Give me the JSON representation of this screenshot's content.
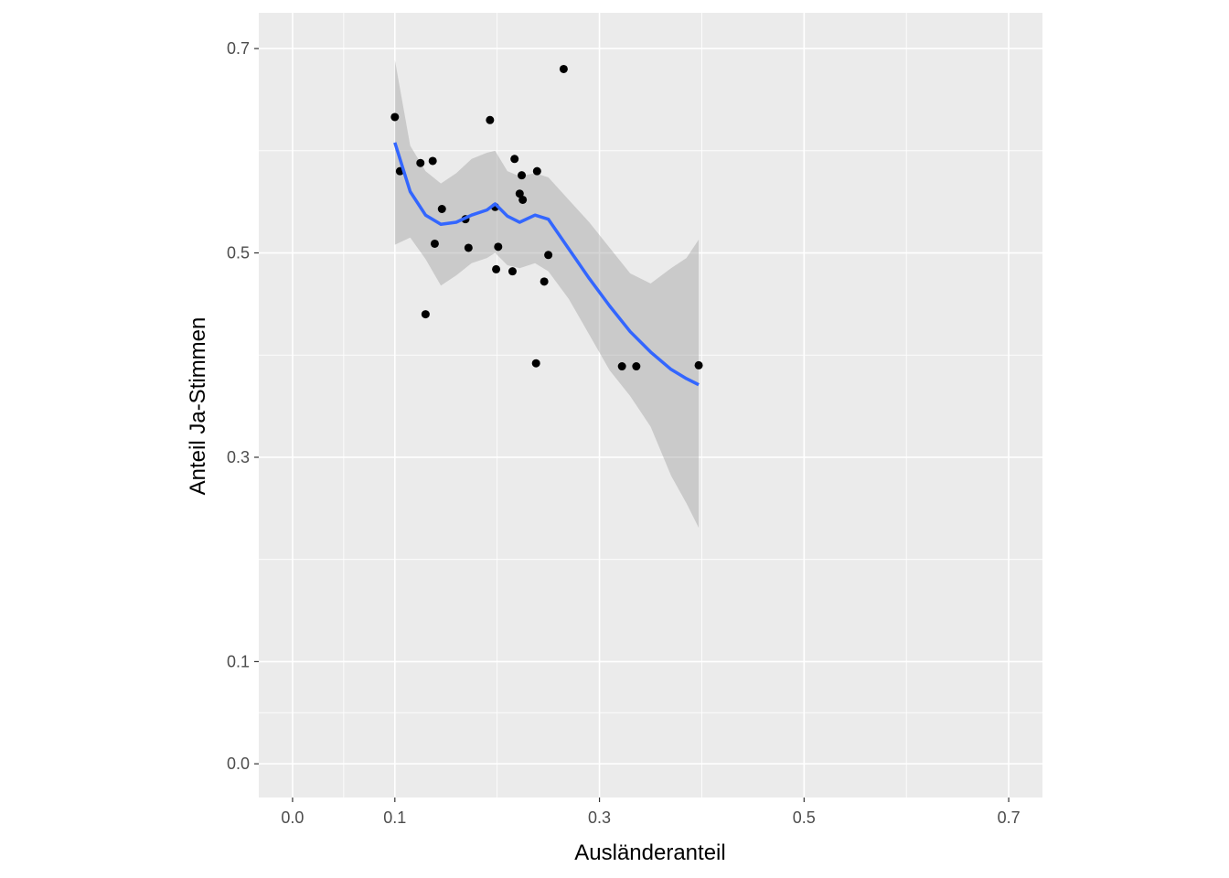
{
  "chart_data": {
    "type": "scatter",
    "xlabel": "Ausländeranteil",
    "ylabel": "Anteil Ja-Stimmen",
    "xlim": [
      -0.033,
      0.733
    ],
    "ylim": [
      -0.033,
      0.735
    ],
    "x_ticks": [
      0.0,
      0.1,
      0.3,
      0.5,
      0.7
    ],
    "x_tick_labels": [
      "0.0",
      "0.1",
      "0.3",
      "0.5",
      "0.7"
    ],
    "x_minor_ticks": [
      0.05,
      0.2,
      0.4,
      0.6
    ],
    "y_ticks": [
      0.0,
      0.1,
      0.3,
      0.5,
      0.7
    ],
    "y_tick_labels": [
      "0.0",
      "0.1",
      "0.3",
      "0.5",
      "0.7"
    ],
    "y_minor_ticks": [
      0.05,
      0.2,
      0.4,
      0.6
    ],
    "grid": true,
    "panel_background": "#ebebeb",
    "grid_color": "#ffffff",
    "point_color": "#000000",
    "smooth_color": "#3366ff",
    "ribbon_color": "#999999",
    "points": [
      [
        0.1,
        0.633
      ],
      [
        0.105,
        0.58
      ],
      [
        0.125,
        0.588
      ],
      [
        0.13,
        0.44
      ],
      [
        0.137,
        0.59
      ],
      [
        0.139,
        0.509
      ],
      [
        0.146,
        0.543
      ],
      [
        0.169,
        0.533
      ],
      [
        0.172,
        0.505
      ],
      [
        0.193,
        0.63
      ],
      [
        0.198,
        0.545
      ],
      [
        0.199,
        0.484
      ],
      [
        0.201,
        0.506
      ],
      [
        0.215,
        0.482
      ],
      [
        0.217,
        0.592
      ],
      [
        0.222,
        0.558
      ],
      [
        0.224,
        0.576
      ],
      [
        0.225,
        0.552
      ],
      [
        0.238,
        0.392
      ],
      [
        0.239,
        0.58
      ],
      [
        0.246,
        0.472
      ],
      [
        0.25,
        0.498
      ],
      [
        0.265,
        0.68
      ],
      [
        0.322,
        0.389
      ],
      [
        0.336,
        0.389
      ],
      [
        0.397,
        0.39
      ]
    ],
    "smooth": [
      [
        0.1,
        0.608,
        0.689,
        0.508
      ],
      [
        0.115,
        0.56,
        0.605,
        0.515
      ],
      [
        0.13,
        0.537,
        0.58,
        0.494
      ],
      [
        0.145,
        0.528,
        0.568,
        0.468
      ],
      [
        0.16,
        0.53,
        0.578,
        0.478
      ],
      [
        0.175,
        0.537,
        0.592,
        0.49
      ],
      [
        0.19,
        0.542,
        0.598,
        0.495
      ],
      [
        0.198,
        0.548,
        0.6,
        0.5
      ],
      [
        0.21,
        0.536,
        0.58,
        0.488
      ],
      [
        0.222,
        0.53,
        0.575,
        0.485
      ],
      [
        0.237,
        0.537,
        0.578,
        0.49
      ],
      [
        0.25,
        0.533,
        0.574,
        0.482
      ],
      [
        0.27,
        0.504,
        0.552,
        0.455
      ],
      [
        0.29,
        0.475,
        0.53,
        0.42
      ],
      [
        0.31,
        0.448,
        0.505,
        0.385
      ],
      [
        0.33,
        0.423,
        0.48,
        0.36
      ],
      [
        0.35,
        0.403,
        0.47,
        0.33
      ],
      [
        0.37,
        0.386,
        0.485,
        0.282
      ],
      [
        0.385,
        0.377,
        0.495,
        0.255
      ],
      [
        0.397,
        0.371,
        0.513,
        0.231
      ]
    ]
  }
}
